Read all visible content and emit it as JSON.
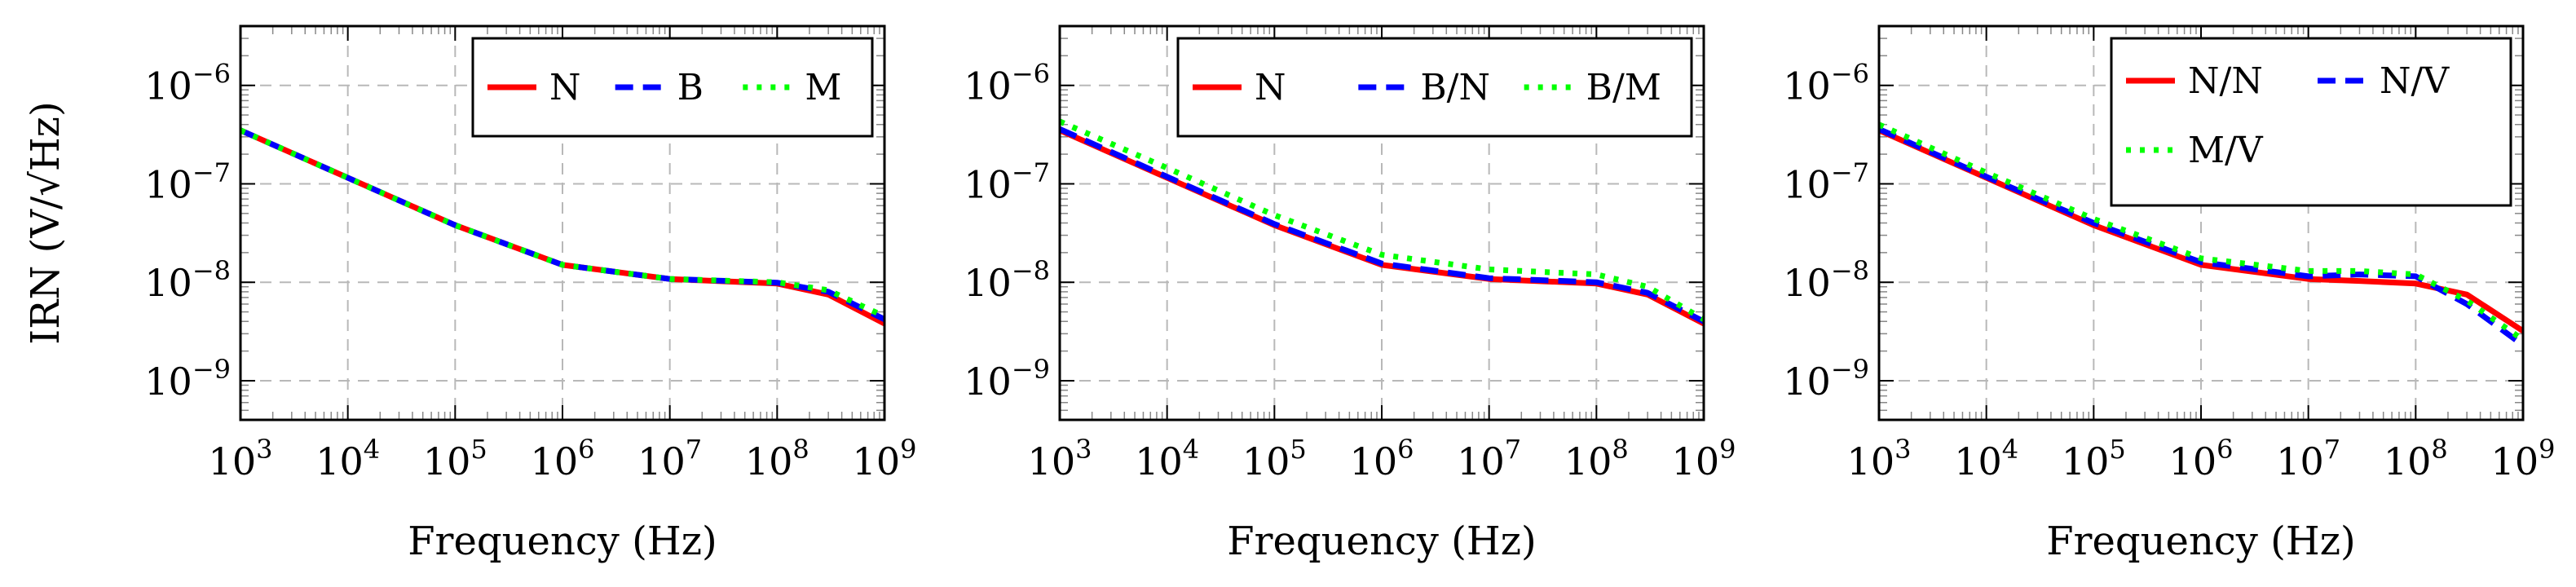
{
  "chart_data": [
    {
      "type": "line",
      "xscale": "log",
      "yscale": "log",
      "xlim": [
        1000,
        1000000000
      ],
      "ylim": [
        4e-10,
        4e-06
      ],
      "xlabel": "Frequency (Hz)",
      "ylabel": "IRN (V/√Hz)",
      "grid": true,
      "legend_position": "top-right",
      "legend_columns": 3,
      "x_ticks": [
        {
          "base": "10",
          "exp": "3"
        },
        {
          "base": "10",
          "exp": "4"
        },
        {
          "base": "10",
          "exp": "5"
        },
        {
          "base": "10",
          "exp": "6"
        },
        {
          "base": "10",
          "exp": "7"
        },
        {
          "base": "10",
          "exp": "8"
        },
        {
          "base": "10",
          "exp": "9"
        }
      ],
      "y_ticks": [
        {
          "base": "10",
          "exp": "−6"
        },
        {
          "base": "10",
          "exp": "−7"
        },
        {
          "base": "10",
          "exp": "−8"
        },
        {
          "base": "10",
          "exp": "−9"
        }
      ],
      "x": [
        1000,
        10000,
        100000,
        1000000,
        10000000,
        100000000,
        300000000,
        1000000000
      ],
      "series": [
        {
          "name": "N",
          "color": "#ff0000",
          "style": "solid",
          "values": [
            3.5e-07,
            1.15e-07,
            3.8e-08,
            1.5e-08,
            1.08e-08,
            9.7e-09,
            7.5e-09,
            3.8e-09
          ]
        },
        {
          "name": "B",
          "color": "#0000ff",
          "style": "dashed",
          "values": [
            3.5e-07,
            1.15e-07,
            3.8e-08,
            1.5e-08,
            1.08e-08,
            9.9e-09,
            8e-09,
            4.2e-09
          ]
        },
        {
          "name": "M",
          "color": "#00ff00",
          "style": "dotted",
          "values": [
            3.5e-07,
            1.15e-07,
            3.8e-08,
            1.5e-08,
            1.08e-08,
            1e-08,
            8.3e-09,
            4.5e-09
          ]
        }
      ]
    },
    {
      "type": "line",
      "xscale": "log",
      "yscale": "log",
      "xlim": [
        1000,
        1000000000
      ],
      "ylim": [
        4e-10,
        4e-06
      ],
      "xlabel": "Frequency (Hz)",
      "ylabel": "",
      "grid": true,
      "legend_position": "top-right",
      "legend_columns": 3,
      "x_ticks": [
        {
          "base": "10",
          "exp": "3"
        },
        {
          "base": "10",
          "exp": "4"
        },
        {
          "base": "10",
          "exp": "5"
        },
        {
          "base": "10",
          "exp": "6"
        },
        {
          "base": "10",
          "exp": "7"
        },
        {
          "base": "10",
          "exp": "8"
        },
        {
          "base": "10",
          "exp": "9"
        }
      ],
      "y_ticks": [
        {
          "base": "10",
          "exp": "−6"
        },
        {
          "base": "10",
          "exp": "−7"
        },
        {
          "base": "10",
          "exp": "−8"
        },
        {
          "base": "10",
          "exp": "−9"
        }
      ],
      "x": [
        1000,
        10000,
        100000,
        1000000,
        10000000,
        100000000,
        300000000,
        1000000000
      ],
      "series": [
        {
          "name": "N",
          "color": "#ff0000",
          "style": "solid",
          "values": [
            3.5e-07,
            1.15e-07,
            3.8e-08,
            1.5e-08,
            1.08e-08,
            9.7e-09,
            7.5e-09,
            3.8e-09
          ]
        },
        {
          "name": "B/N",
          "color": "#0000ff",
          "style": "dashed",
          "values": [
            3.6e-07,
            1.18e-07,
            3.9e-08,
            1.55e-08,
            1.1e-08,
            1e-08,
            7.8e-09,
            4e-09
          ]
        },
        {
          "name": "B/M",
          "color": "#00ff00",
          "style": "dotted",
          "values": [
            4.3e-07,
            1.45e-07,
            4.8e-08,
            1.9e-08,
            1.35e-08,
            1.2e-08,
            9e-09,
            4.2e-09
          ]
        }
      ]
    },
    {
      "type": "line",
      "xscale": "log",
      "yscale": "log",
      "xlim": [
        1000,
        1000000000
      ],
      "ylim": [
        4e-10,
        4e-06
      ],
      "xlabel": "Frequency (Hz)",
      "ylabel": "",
      "grid": true,
      "legend_position": "top-right",
      "legend_columns": 2,
      "x_ticks": [
        {
          "base": "10",
          "exp": "3"
        },
        {
          "base": "10",
          "exp": "4"
        },
        {
          "base": "10",
          "exp": "5"
        },
        {
          "base": "10",
          "exp": "6"
        },
        {
          "base": "10",
          "exp": "7"
        },
        {
          "base": "10",
          "exp": "8"
        },
        {
          "base": "10",
          "exp": "9"
        }
      ],
      "y_ticks": [
        {
          "base": "10",
          "exp": "−6"
        },
        {
          "base": "10",
          "exp": "−7"
        },
        {
          "base": "10",
          "exp": "−8"
        },
        {
          "base": "10",
          "exp": "−9"
        }
      ],
      "x": [
        1000,
        10000,
        100000,
        1000000,
        10000000,
        30000000,
        100000000,
        300000000,
        1000000000
      ],
      "series": [
        {
          "name": "N/N",
          "color": "#ff0000",
          "style": "solid",
          "values": [
            3.5e-07,
            1.15e-07,
            3.8e-08,
            1.5e-08,
            1.08e-08,
            1.03e-08,
            9.7e-09,
            7.5e-09,
            3.2e-09
          ]
        },
        {
          "name": "N/V",
          "color": "#0000ff",
          "style": "dashed",
          "values": [
            3.6e-07,
            1.18e-07,
            4e-08,
            1.6e-08,
            1.15e-08,
            1.2e-08,
            1.15e-08,
            6e-09,
            2.3e-09
          ]
        },
        {
          "name": "M/V",
          "color": "#00ff00",
          "style": "dotted",
          "values": [
            4e-07,
            1.3e-07,
            4.4e-08,
            1.75e-08,
            1.3e-08,
            1.3e-08,
            1.2e-08,
            6.5e-09,
            2.6e-09
          ]
        }
      ]
    }
  ]
}
